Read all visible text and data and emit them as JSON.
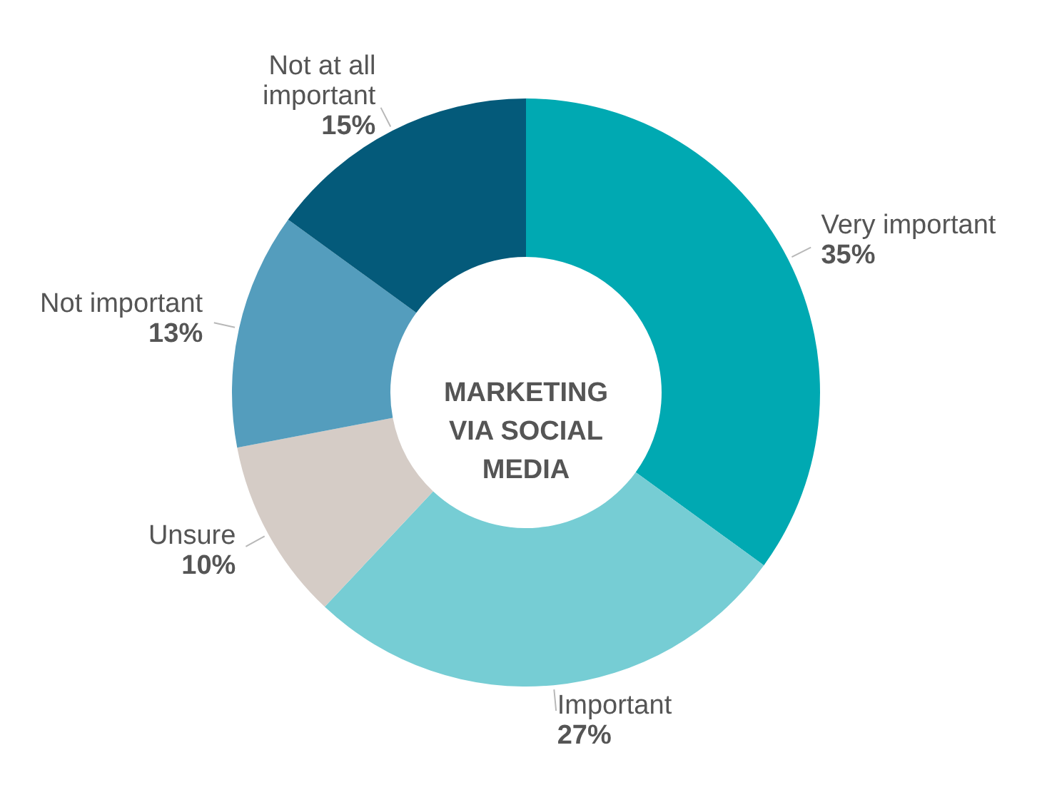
{
  "chart_data": {
    "type": "donut",
    "title": "MARKETING VIA SOCIAL MEDIA",
    "categories": [
      "Very important",
      "Important",
      "Unsure",
      "Not important",
      "Not at all important"
    ],
    "values": [
      35,
      27,
      10,
      13,
      15
    ],
    "value_labels": [
      "35%",
      "27%",
      "10%",
      "13%",
      "15%"
    ],
    "colors": [
      "#00a9b2",
      "#76cdd4",
      "#d5ccc6",
      "#549dbd",
      "#045a7a"
    ]
  }
}
